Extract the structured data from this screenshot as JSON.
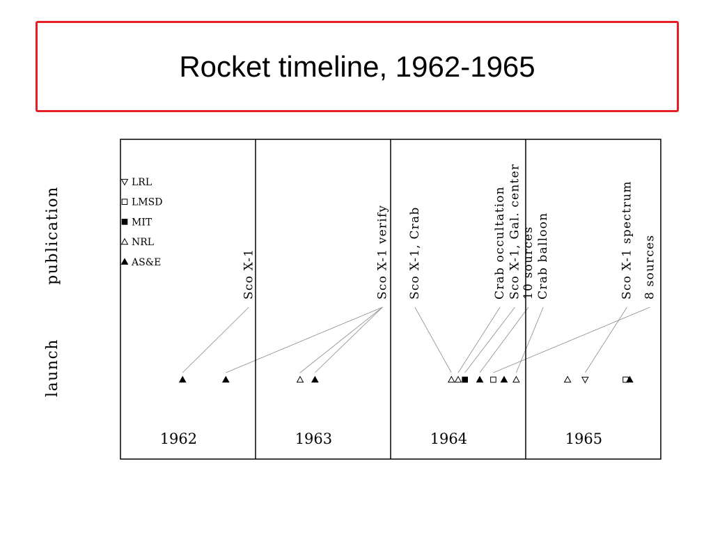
{
  "slide": {
    "title": "Rocket timeline, 1962-1965"
  },
  "chart_data": {
    "type": "scatter",
    "title": "",
    "rows": [
      "publication",
      "launch"
    ],
    "year_panels": [
      "1962",
      "1963",
      "1964",
      "1965"
    ],
    "xlim": [
      1962.0,
      1966.0
    ],
    "legend": [
      {
        "group": "LRL",
        "marker": "triangle-down-open"
      },
      {
        "group": "LMSD",
        "marker": "square-open"
      },
      {
        "group": "MIT",
        "marker": "square-filled"
      },
      {
        "group": "NRL",
        "marker": "triangle-up-open"
      },
      {
        "group": "AS&E",
        "marker": "triangle-up-filled"
      }
    ],
    "legend_position": "top-left",
    "publications": [
      {
        "label": "Sco X-1",
        "x": 1962.95
      },
      {
        "label": "Sco X-1 verify",
        "x": 1963.94
      },
      {
        "label": "Sco X-1, Crab",
        "x": 1964.18
      },
      {
        "label": "Crab occultation",
        "x": 1964.81
      },
      {
        "label": "Sco X-1, Gal. center",
        "x": 1964.92
      },
      {
        "label": "10 sources",
        "x": 1965.02
      },
      {
        "label": "Crab balloon",
        "x": 1965.13
      },
      {
        "label": "Sco X-1 spectrum",
        "x": 1965.75
      },
      {
        "label": "8 sources",
        "x": 1965.92
      }
    ],
    "launches": [
      {
        "x": 1962.46,
        "group": "AS&E"
      },
      {
        "x": 1962.78,
        "group": "AS&E"
      },
      {
        "x": 1963.33,
        "group": "NRL"
      },
      {
        "x": 1963.44,
        "group": "AS&E"
      },
      {
        "x": 1964.45,
        "group": "NRL"
      },
      {
        "x": 1964.5,
        "group": "NRL"
      },
      {
        "x": 1964.55,
        "group": "MIT"
      },
      {
        "x": 1964.66,
        "group": "AS&E"
      },
      {
        "x": 1964.76,
        "group": "LMSD"
      },
      {
        "x": 1964.84,
        "group": "AS&E"
      },
      {
        "x": 1964.93,
        "group": "NRL"
      },
      {
        "x": 1965.31,
        "group": "NRL"
      },
      {
        "x": 1965.44,
        "group": "LRL"
      },
      {
        "x": 1965.74,
        "group": "LMSD"
      },
      {
        "x": 1965.77,
        "group": "AS&E"
      }
    ],
    "links": [
      {
        "pub": 0,
        "launch": 0
      },
      {
        "pub": 1,
        "launch": 1
      },
      {
        "pub": 1,
        "launch": 2
      },
      {
        "pub": 1,
        "launch": 3
      },
      {
        "pub": 2,
        "launch": 4
      },
      {
        "pub": 3,
        "launch": 5
      },
      {
        "pub": 4,
        "launch": 6
      },
      {
        "pub": 5,
        "launch": 7
      },
      {
        "pub": 6,
        "launch": 10
      },
      {
        "pub": 7,
        "launch": 12
      },
      {
        "pub": 8,
        "launch": 8
      }
    ]
  }
}
